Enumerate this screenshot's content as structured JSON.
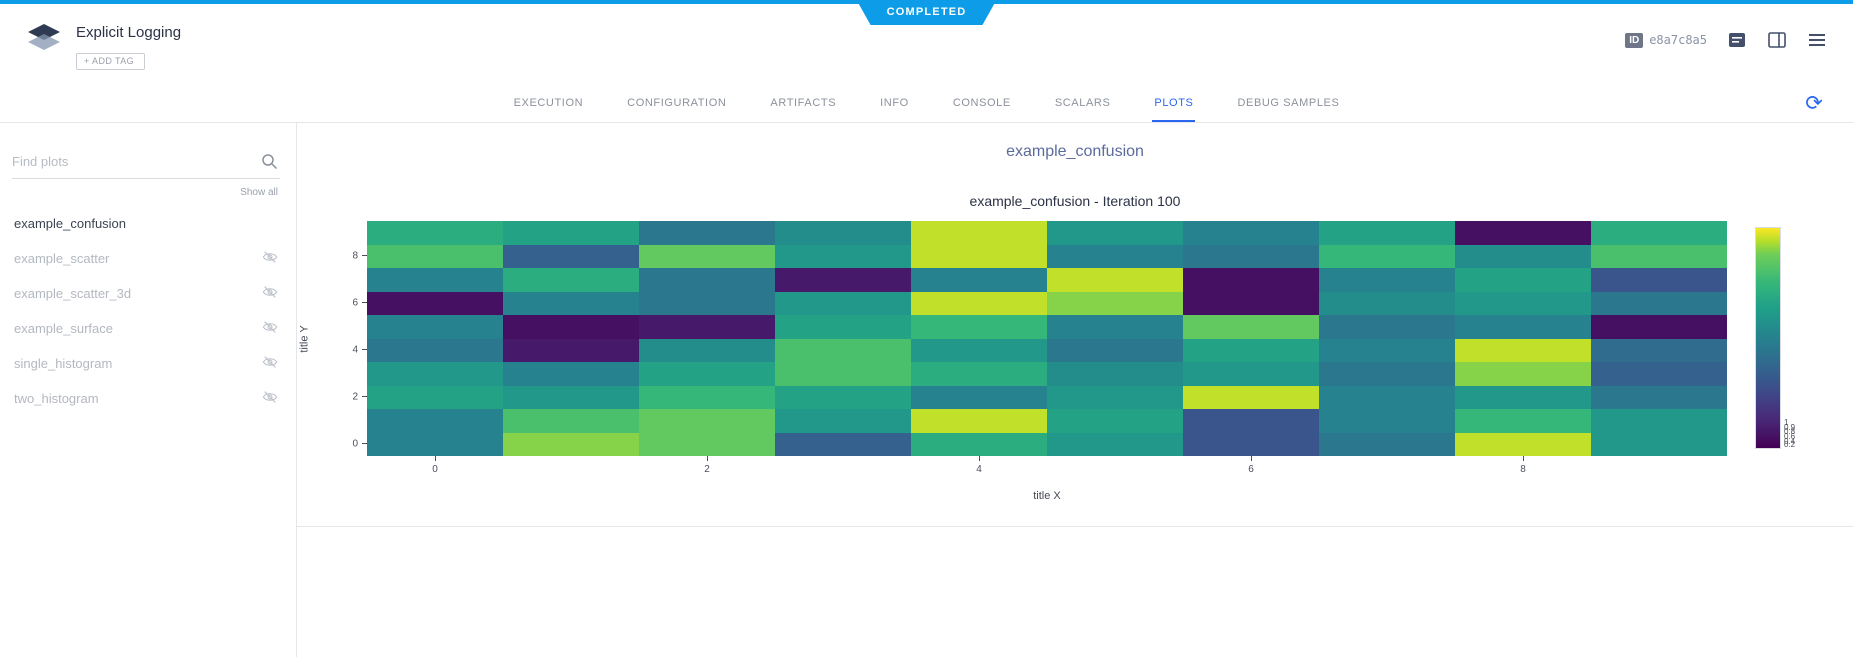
{
  "banner": {
    "label": "COMPLETED"
  },
  "header": {
    "app_title": "Explicit Logging",
    "add_tag_label": "+ ADD TAG",
    "id_badge": "ID",
    "id_value": "e8a7c8a5"
  },
  "tabs": {
    "items": [
      {
        "label": "EXECUTION"
      },
      {
        "label": "CONFIGURATION"
      },
      {
        "label": "ARTIFACTS"
      },
      {
        "label": "INFO"
      },
      {
        "label": "CONSOLE"
      },
      {
        "label": "SCALARS"
      },
      {
        "label": "PLOTS"
      },
      {
        "label": "DEBUG SAMPLES"
      }
    ],
    "active": "PLOTS"
  },
  "sidebar": {
    "search_placeholder": "Find plots",
    "show_all_label": "Show all",
    "plots": [
      {
        "label": "example_confusion",
        "selected": true,
        "hidden_toggle": false
      },
      {
        "label": "example_scatter",
        "selected": false,
        "hidden_toggle": true
      },
      {
        "label": "example_scatter_3d",
        "selected": false,
        "hidden_toggle": true
      },
      {
        "label": "example_surface",
        "selected": false,
        "hidden_toggle": true
      },
      {
        "label": "single_histogram",
        "selected": false,
        "hidden_toggle": true
      },
      {
        "label": "two_histogram",
        "selected": false,
        "hidden_toggle": true
      }
    ]
  },
  "main": {
    "section_title": "example_confusion"
  },
  "chart_data": {
    "type": "heatmap",
    "title": "example_confusion - Iteration 100",
    "xlabel": "title X",
    "ylabel": "title Y",
    "x_ticks": [
      0,
      2,
      4,
      6,
      8
    ],
    "y_ticks": [
      0,
      2,
      4,
      6,
      8
    ],
    "x_range": [
      0,
      9
    ],
    "y_range": [
      0,
      9
    ],
    "colormap": "viridis",
    "colorbar_ticks": [
      0.2,
      0.4,
      0.6,
      0.8,
      0.9,
      1
    ],
    "values_rows_y9_to_y0": [
      [
        0.7,
        0.65,
        0.45,
        0.55,
        0.95,
        0.6,
        0.5,
        0.65,
        0.05,
        0.7
      ],
      [
        0.8,
        0.35,
        0.85,
        0.6,
        0.95,
        0.5,
        0.45,
        0.75,
        0.55,
        0.8
      ],
      [
        0.5,
        0.7,
        0.45,
        0.08,
        0.5,
        0.95,
        0.05,
        0.5,
        0.65,
        0.3
      ],
      [
        0.05,
        0.5,
        0.45,
        0.6,
        0.95,
        0.9,
        0.05,
        0.55,
        0.6,
        0.45
      ],
      [
        0.5,
        0.05,
        0.08,
        0.65,
        0.75,
        0.5,
        0.85,
        0.45,
        0.5,
        0.05
      ],
      [
        0.45,
        0.08,
        0.55,
        0.8,
        0.6,
        0.45,
        0.65,
        0.5,
        0.95,
        0.4
      ],
      [
        0.6,
        0.5,
        0.65,
        0.8,
        0.7,
        0.55,
        0.6,
        0.45,
        0.9,
        0.35
      ],
      [
        0.65,
        0.6,
        0.75,
        0.65,
        0.5,
        0.6,
        0.95,
        0.5,
        0.6,
        0.45
      ],
      [
        0.5,
        0.8,
        0.85,
        0.6,
        0.95,
        0.65,
        0.3,
        0.5,
        0.75,
        0.6
      ],
      [
        0.5,
        0.9,
        0.85,
        0.35,
        0.7,
        0.6,
        0.3,
        0.45,
        0.95,
        0.6
      ]
    ]
  },
  "colors": {
    "accent_blue": "#0d9ce8",
    "tab_active_blue": "#2b66f0",
    "section_title_blue": "#5b6b9e"
  }
}
